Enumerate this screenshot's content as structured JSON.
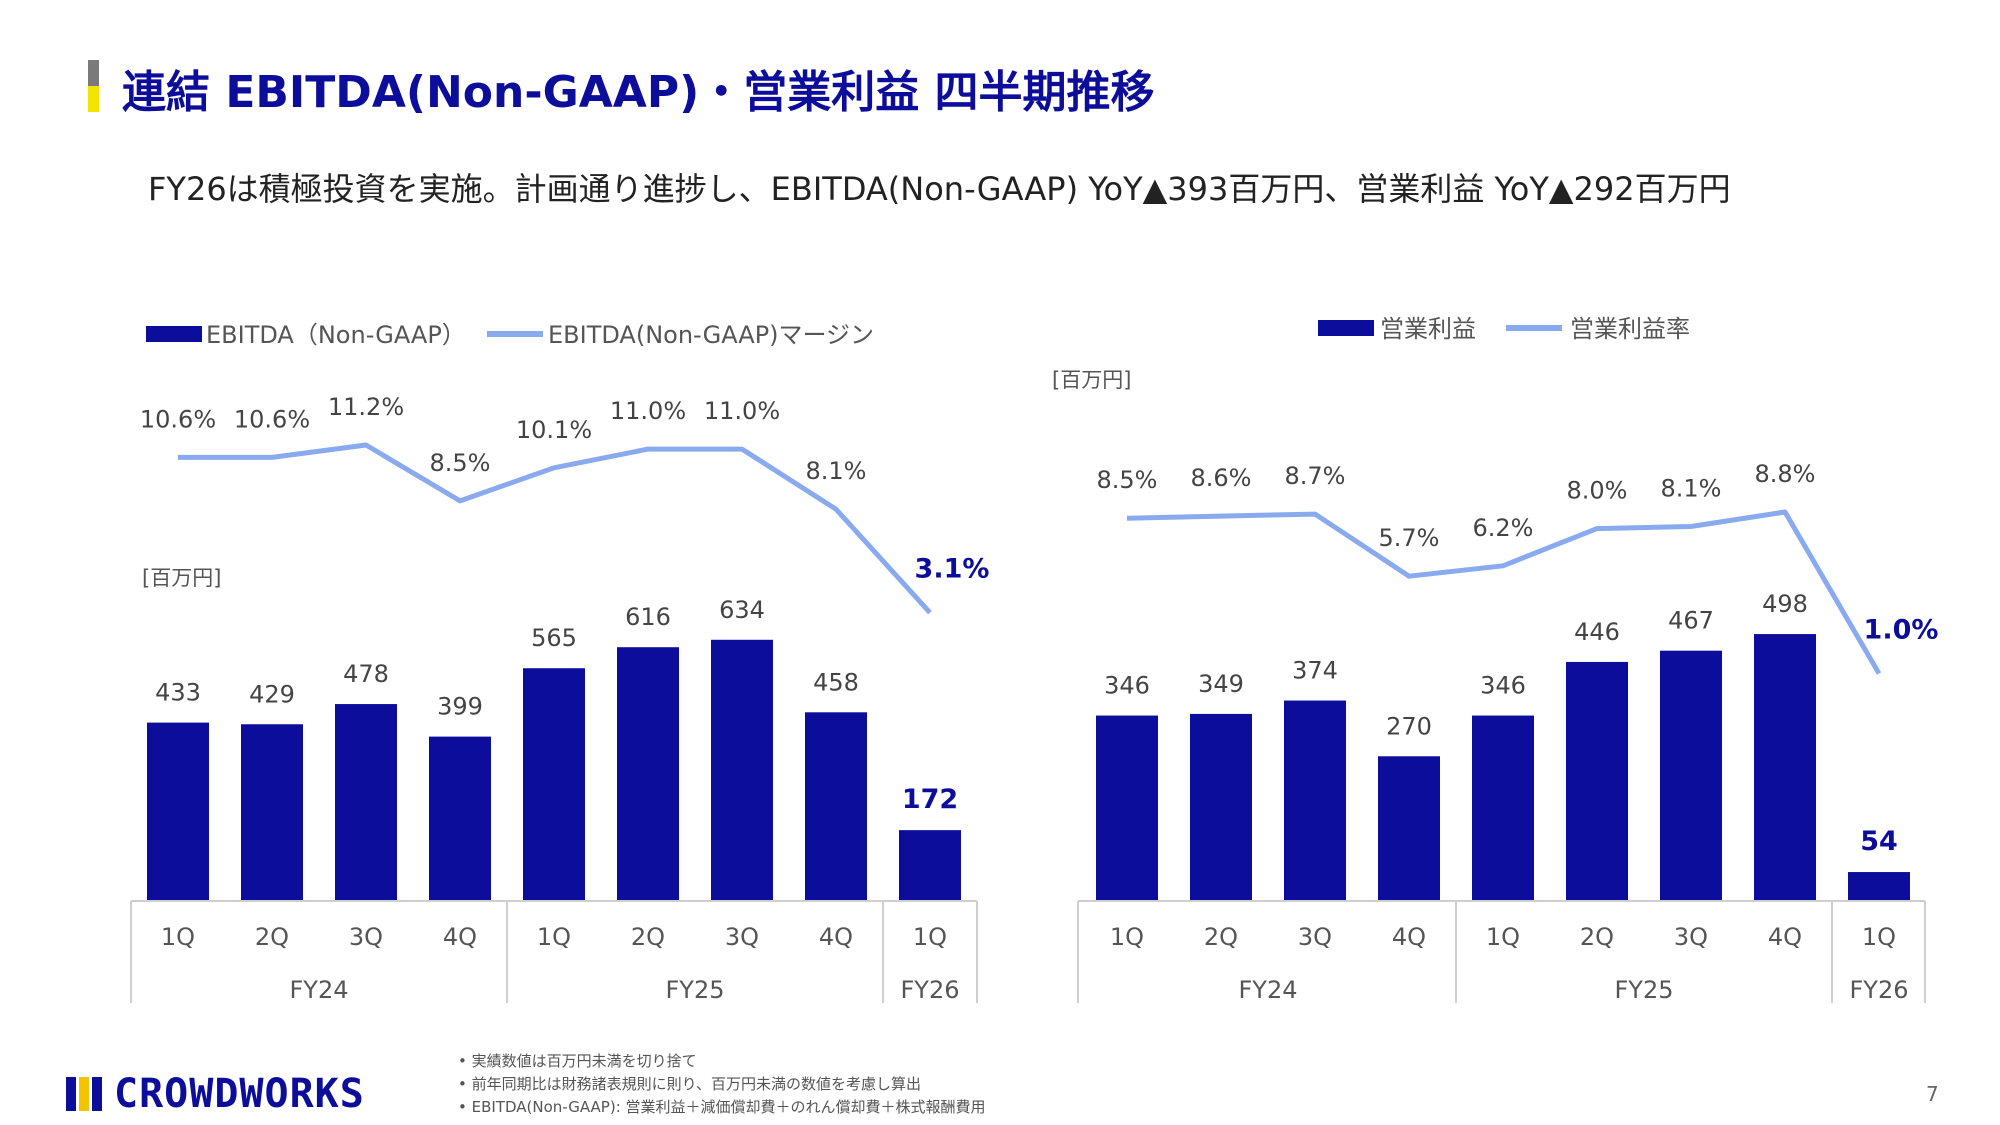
{
  "header": {
    "title": "連結 EBITDA(Non-GAAP)・営業利益 四半期推移",
    "subtitle": "FY26は積極投資を実施。計画通り進捗し、EBITDA(Non-GAAP) YoY▲393百万円、営業利益 YoY▲292百万円"
  },
  "colors": {
    "bar": "#0d0d9c",
    "line": "#8aaaf0",
    "title": "#0d0d9c",
    "highlight": "#0d0d9c"
  },
  "chart_data": [
    {
      "type": "bar",
      "unit_label": "[百万円]",
      "legend": {
        "bar_label": "EBITDA（Non-GAAP）",
        "line_label": "EBITDA(Non-GAAP)マージン"
      },
      "categories": [
        "1Q",
        "2Q",
        "3Q",
        "4Q",
        "1Q",
        "2Q",
        "3Q",
        "4Q",
        "1Q"
      ],
      "groups": [
        {
          "label": "FY24",
          "count": 4
        },
        {
          "label": "FY25",
          "count": 4
        },
        {
          "label": "FY26",
          "count": 1
        }
      ],
      "series": [
        {
          "name": "EBITDA（Non-GAAP）",
          "kind": "bar",
          "values": [
            433,
            429,
            478,
            399,
            565,
            616,
            634,
            458,
            172
          ],
          "labels": [
            "433",
            "429",
            "478",
            "399",
            "565",
            "616",
            "634",
            "458",
            "172"
          ]
        },
        {
          "name": "EBITDA(Non-GAAP)マージン",
          "kind": "line",
          "values": [
            10.6,
            10.6,
            11.2,
            8.5,
            10.1,
            11.0,
            11.0,
            8.1,
            3.1
          ],
          "labels": [
            "10.6%",
            "10.6%",
            "11.2%",
            "8.5%",
            "10.1%",
            "11.0%",
            "11.0%",
            "8.1%",
            "3.1%"
          ]
        }
      ],
      "highlight_last": true
    },
    {
      "type": "bar",
      "unit_label": "[百万円]",
      "legend": {
        "bar_label": "営業利益",
        "line_label": "営業利益率"
      },
      "categories": [
        "1Q",
        "2Q",
        "3Q",
        "4Q",
        "1Q",
        "2Q",
        "3Q",
        "4Q",
        "1Q"
      ],
      "groups": [
        {
          "label": "FY24",
          "count": 4
        },
        {
          "label": "FY25",
          "count": 4
        },
        {
          "label": "FY26",
          "count": 1
        }
      ],
      "series": [
        {
          "name": "営業利益",
          "kind": "bar",
          "values": [
            346,
            349,
            374,
            270,
            346,
            446,
            467,
            498,
            54
          ],
          "labels": [
            "346",
            "349",
            "374",
            "270",
            "346",
            "446",
            "467",
            "498",
            "54"
          ]
        },
        {
          "name": "営業利益率",
          "kind": "line",
          "values": [
            8.5,
            8.6,
            8.7,
            5.7,
            6.2,
            8.0,
            8.1,
            8.8,
            1.0
          ],
          "labels": [
            "8.5%",
            "8.6%",
            "8.7%",
            "5.7%",
            "6.2%",
            "8.0%",
            "8.1%",
            "8.8%",
            "1.0%"
          ]
        }
      ],
      "highlight_last": true
    }
  ],
  "footnotes": [
    "実績数値は百万円未満を切り捨て",
    "前年同期比は財務諸表規則に則り、百万円未満の数値を考慮し算出",
    "EBITDA(Non-GAAP): 営業利益＋減価償却費＋のれん償却費＋株式報酬費用"
  ],
  "logo": {
    "text": "CROWDWORKS",
    "mark_colors": [
      "#0d0d9c",
      "#f2c500",
      "#0d0d9c"
    ]
  },
  "page_number": "7"
}
